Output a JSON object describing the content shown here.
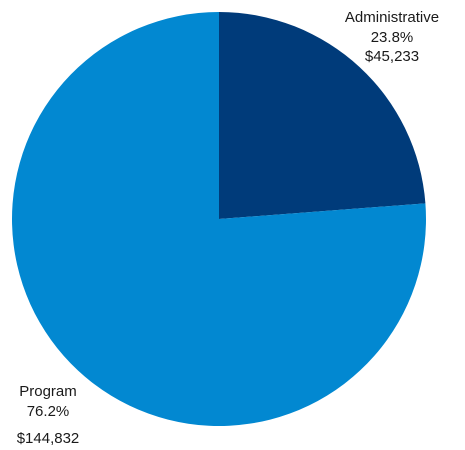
{
  "chart_data": {
    "type": "pie",
    "title": "",
    "categories": [
      "Administrative",
      "Program"
    ],
    "values": [
      45233,
      144832
    ],
    "percent_labels": [
      "23.8%",
      "76.2%"
    ],
    "value_labels": [
      "$45,233",
      "$144,832"
    ],
    "colors": [
      "#003b7a",
      "#0288d1"
    ],
    "start_angle": "top",
    "direction": "clockwise",
    "legend": "none"
  }
}
